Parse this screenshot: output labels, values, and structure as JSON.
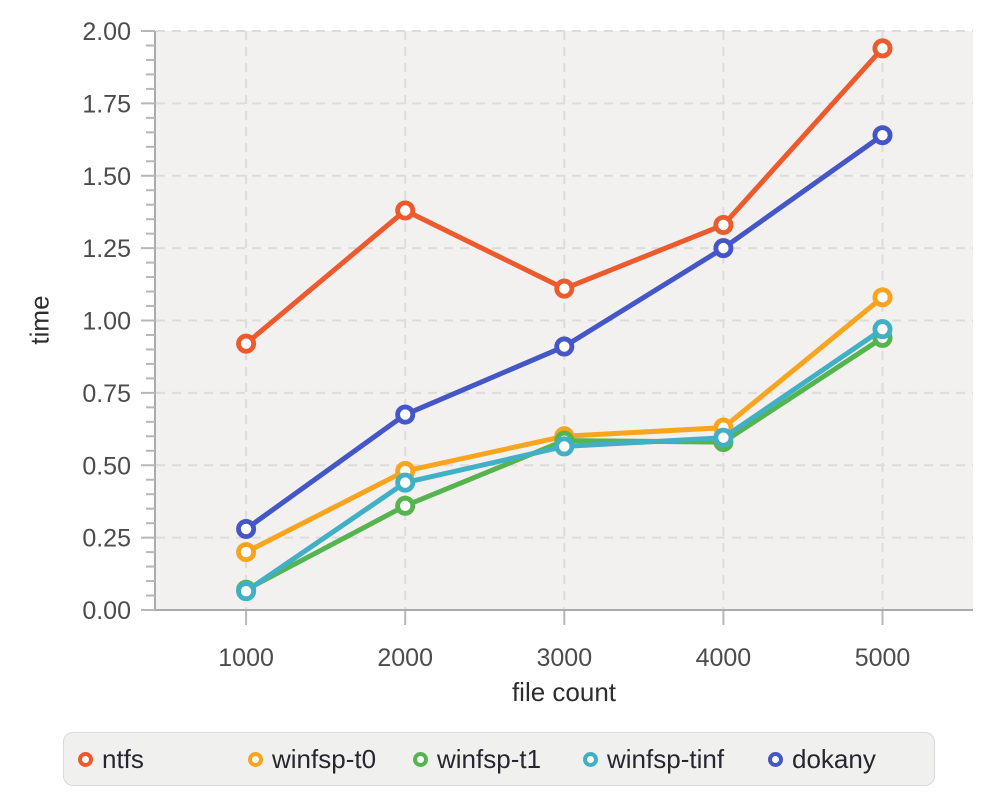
{
  "chart_data": {
    "type": "line",
    "title": "",
    "xlabel": "file count",
    "ylabel": "time",
    "categories": [
      "1000",
      "2000",
      "3000",
      "4000",
      "5000"
    ],
    "series": [
      {
        "name": "ntfs",
        "color": "#ed5a2d",
        "values": [
          0.92,
          1.38,
          1.11,
          1.33,
          1.94
        ]
      },
      {
        "name": "winfsp-t0",
        "color": "#f8a41e",
        "values": [
          0.2,
          0.48,
          0.6,
          0.63,
          1.08
        ]
      },
      {
        "name": "winfsp-t1",
        "color": "#56b44f",
        "values": [
          0.07,
          0.36,
          0.585,
          0.58,
          0.94
        ]
      },
      {
        "name": "winfsp-tinf",
        "color": "#41b0c5",
        "values": [
          0.065,
          0.44,
          0.565,
          0.595,
          0.97
        ]
      },
      {
        "name": "dokany",
        "color": "#4556c6",
        "values": [
          0.28,
          0.675,
          0.91,
          1.25,
          1.64
        ]
      }
    ],
    "ylim": [
      0,
      2
    ],
    "ytick_step": 0.25,
    "ytick_minor_step": 0.05,
    "ytick_labels": [
      "0.00",
      "0.25",
      "0.50",
      "0.75",
      "1.00",
      "1.25",
      "1.50",
      "1.75",
      "2.00"
    ],
    "grid": true,
    "grid_style": "dashed",
    "legend_position": "bottom",
    "marker": "open-circle",
    "palette": {
      "panel_bg": "#f2f1f0",
      "grid": "#dcdcdc",
      "axis_line": "#ababab",
      "tick": "#b7b7b7",
      "tick_label": "#4c4c4c",
      "axis_title": "#2d2d2d",
      "marker_fill": "#ffffff"
    }
  }
}
